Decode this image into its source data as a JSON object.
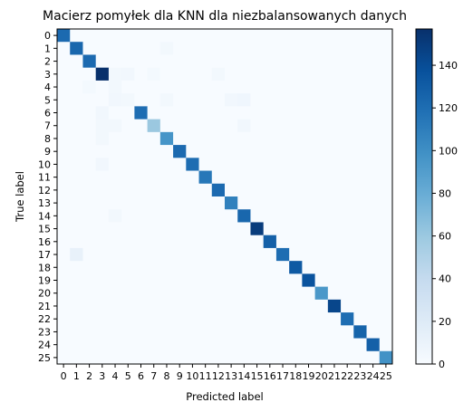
{
  "chart_data": {
    "type": "heatmap",
    "title": "Macierz pomyłek dla KNN dla niezbalansowanych danych",
    "xlabel": "Predicted label",
    "ylabel": "True label",
    "x_tick_labels": [
      "0",
      "1",
      "2",
      "3",
      "4",
      "5",
      "6",
      "7",
      "8",
      "9",
      "10",
      "11",
      "12",
      "13",
      "14",
      "15",
      "16",
      "17",
      "18",
      "19",
      "20",
      "21",
      "22",
      "23",
      "24",
      "25"
    ],
    "y_tick_labels": [
      "0",
      "1",
      "2",
      "3",
      "4",
      "5",
      "6",
      "7",
      "8",
      "9",
      "10",
      "11",
      "12",
      "13",
      "14",
      "15",
      "16",
      "17",
      "18",
      "19",
      "20",
      "21",
      "22",
      "23",
      "24",
      "25"
    ],
    "colormap": "Blues",
    "color_range": [
      0,
      157
    ],
    "colorbar_ticks": [
      0,
      20,
      40,
      60,
      80,
      100,
      120,
      140
    ],
    "diagonal": [
      122,
      124,
      122,
      157,
      128,
      142,
      120,
      60,
      96,
      122,
      120,
      114,
      122,
      108,
      124,
      150,
      128,
      120,
      132,
      136,
      94,
      144,
      120,
      126,
      128,
      98
    ],
    "off_diagonal": [
      [
        3,
        4,
        4
      ],
      [
        5,
        4,
        5
      ],
      [
        5,
        4,
        5
      ],
      [
        7,
        3,
        4
      ],
      [
        7,
        4,
        5
      ],
      [
        5,
        8,
        4
      ],
      [
        5,
        13,
        5
      ],
      [
        17,
        1,
        12
      ],
      [
        3,
        12,
        4
      ],
      [
        5,
        14,
        6
      ],
      [
        7,
        4,
        4
      ],
      [
        4,
        4,
        4
      ],
      [
        1,
        8,
        4
      ],
      [
        14,
        4,
        4
      ],
      [
        5,
        5,
        4
      ],
      [
        8,
        3,
        4
      ],
      [
        3,
        5,
        5
      ],
      [
        3,
        7,
        3
      ],
      [
        1,
        8,
        4
      ],
      [
        6,
        3,
        5
      ],
      [
        7,
        14,
        5
      ],
      [
        4,
        2,
        3
      ],
      [
        10,
        3,
        5
      ]
    ]
  }
}
